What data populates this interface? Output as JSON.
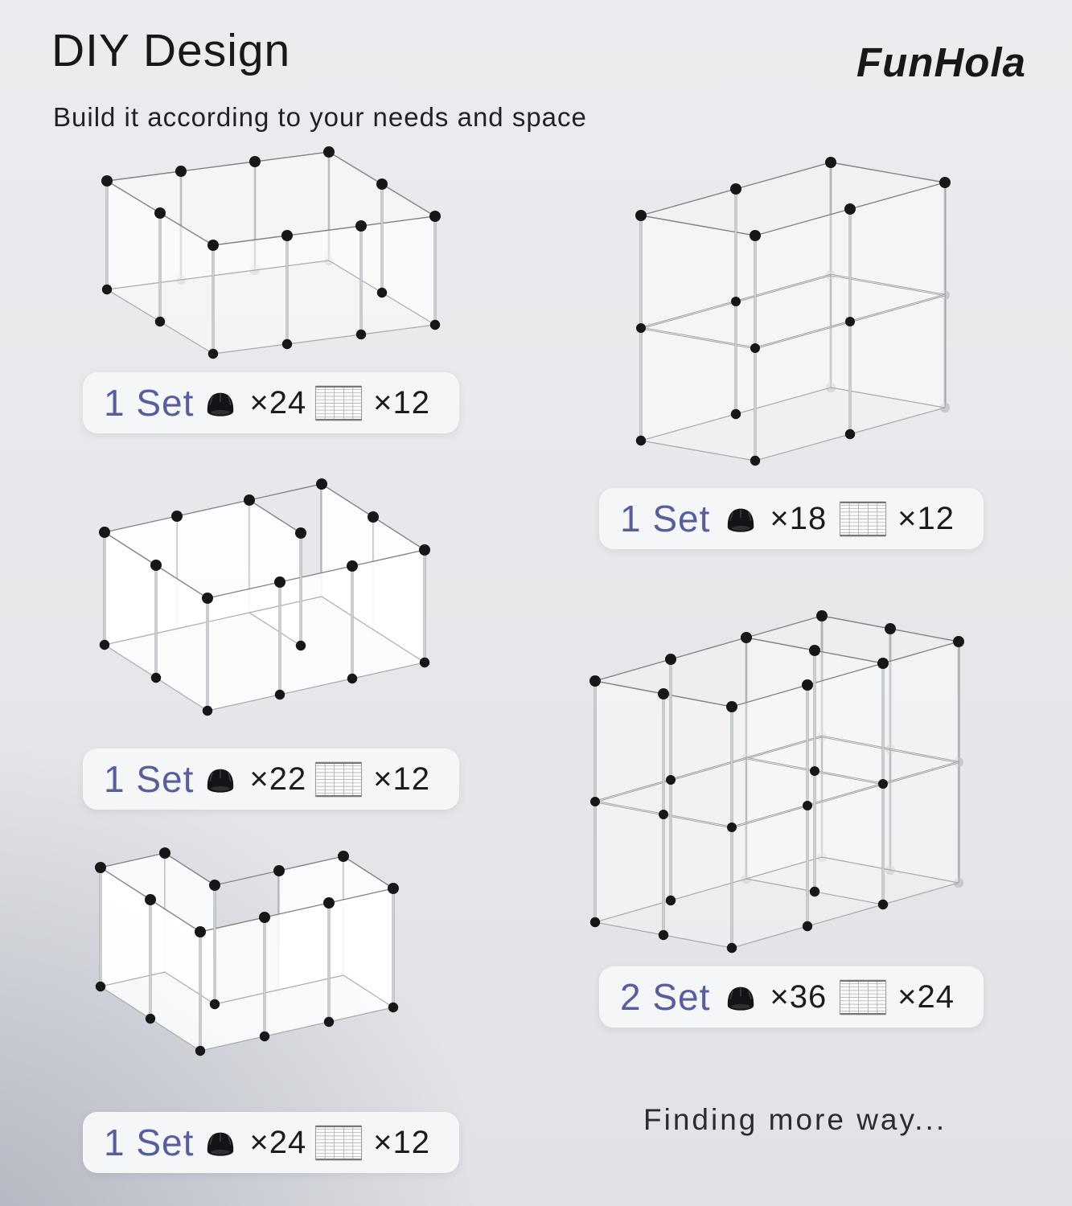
{
  "header": {
    "title": "DIY Design",
    "subtitle": "Build it according to your needs and space",
    "brand": "FunHola"
  },
  "configs": [
    {
      "set_label": "1 Set",
      "connector_count": "×24",
      "panel_count": "×12"
    },
    {
      "set_label": "1 Set",
      "connector_count": "×18",
      "panel_count": "×12"
    },
    {
      "set_label": "1 Set",
      "connector_count": "×22",
      "panel_count": "×12"
    },
    {
      "set_label": "1 Set",
      "connector_count": "×24",
      "panel_count": "×12"
    },
    {
      "set_label": "2 Set",
      "connector_count": "×36",
      "panel_count": "×24"
    }
  ],
  "footer": {
    "more_text": "Finding more way..."
  },
  "colors": {
    "accent": "#565f9b",
    "ink": "#17181a",
    "pill": "#f4f6f8",
    "bg_light": "#eaecef",
    "bg_dark": "#b5b8c1"
  }
}
